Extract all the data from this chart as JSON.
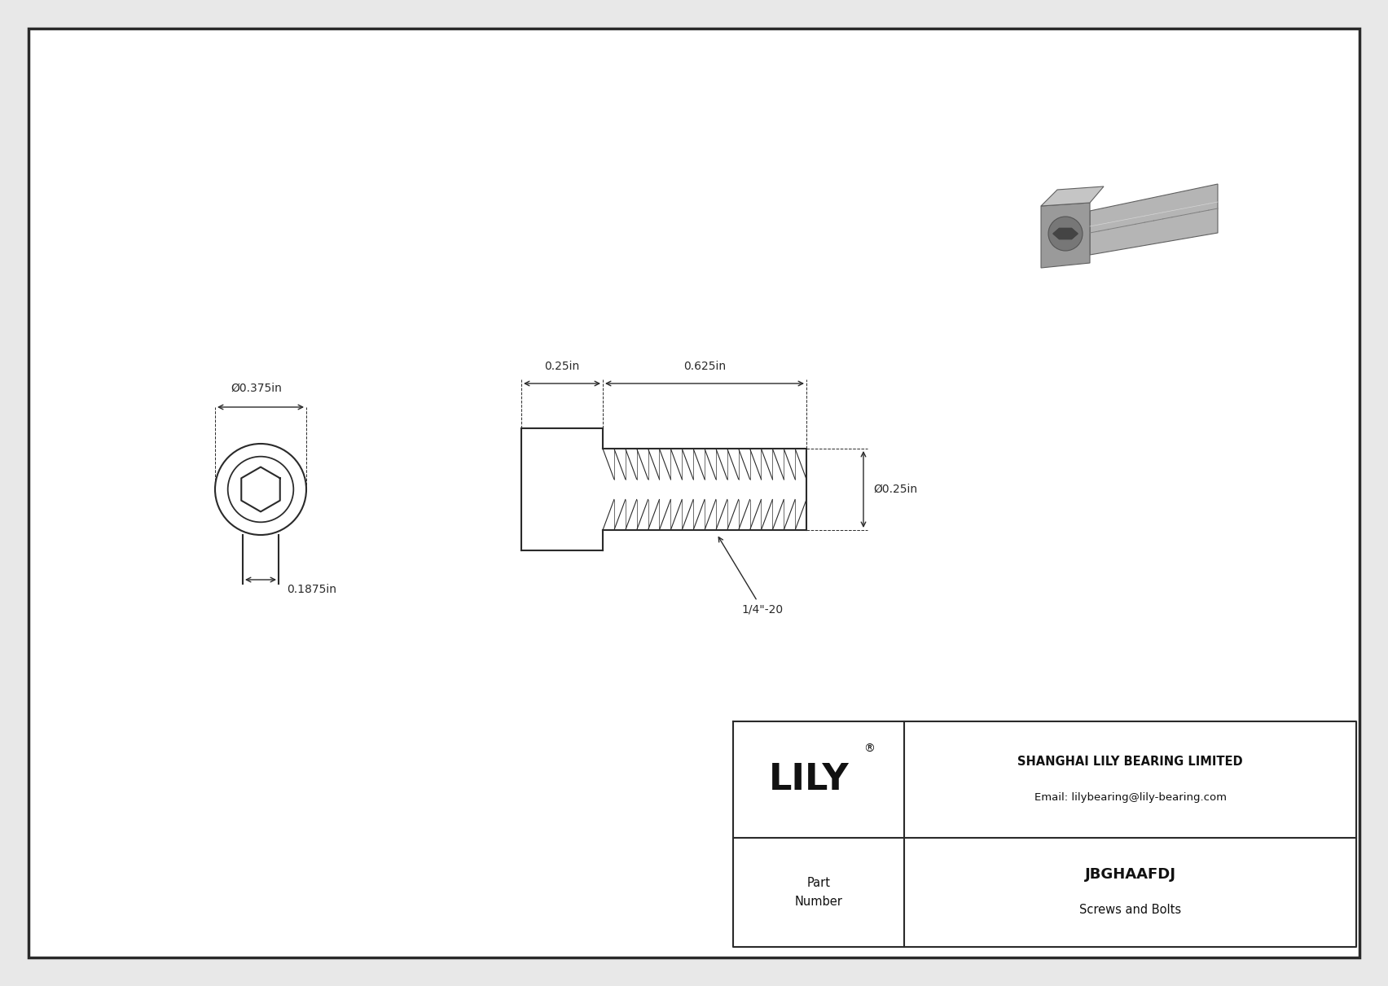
{
  "bg_color": "#e8e8e8",
  "drawing_bg": "#f5f5f5",
  "line_color": "#2a2a2a",
  "title_company": "SHANGHAI LILY BEARING LIMITED",
  "title_email": "Email: lilybearing@lily-bearing.com",
  "part_label": "Part\nNumber",
  "part_number": "JBGHAAFDJ",
  "part_category": "Screws and Bolts",
  "lily_text": "LILY",
  "dim_head_diameter": "Ø0.375in",
  "dim_hex_width": "0.1875in",
  "dim_body_length": "0.625in",
  "dim_head_length": "0.25in",
  "dim_thread_dia": "Ø0.25in",
  "dim_thread_label": "1/4\"-20"
}
